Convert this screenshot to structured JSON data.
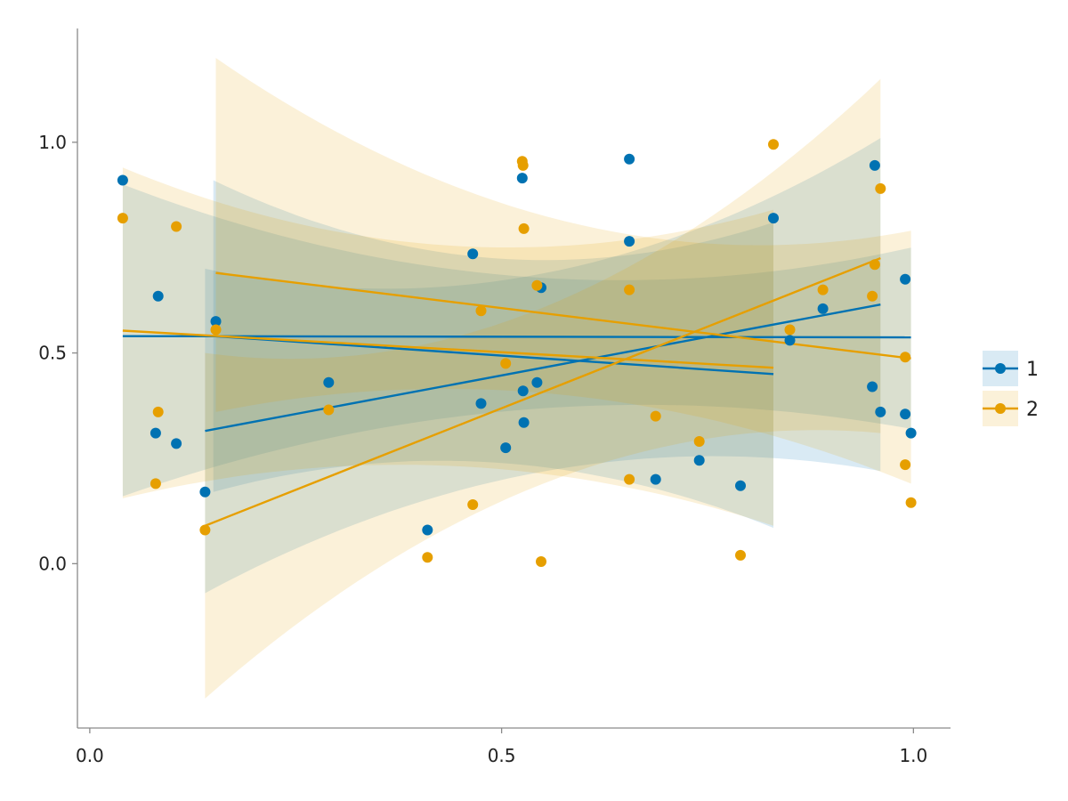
{
  "chart_data": {
    "type": "scatter",
    "title": "",
    "xlabel": "",
    "ylabel": "",
    "xlim": [
      -0.015,
      1.045
    ],
    "ylim": [
      -0.39,
      1.27
    ],
    "x_ticks": [
      0.0,
      0.5,
      1.0
    ],
    "x_tick_labels": [
      "0.0",
      "0.5",
      "1.0"
    ],
    "y_ticks": [
      0.0,
      0.5,
      1.0
    ],
    "y_tick_labels": [
      "0.0",
      "0.5",
      "1.0"
    ],
    "grid": false,
    "legend_position": "right",
    "series": [
      {
        "name": "1",
        "color": "#0072B2",
        "points": [
          [
            0.04,
            0.91
          ],
          [
            0.08,
            0.31
          ],
          [
            0.083,
            0.635
          ],
          [
            0.105,
            0.285
          ],
          [
            0.14,
            0.17
          ],
          [
            0.153,
            0.575
          ],
          [
            0.29,
            0.43
          ],
          [
            0.41,
            0.08
          ],
          [
            0.465,
            0.735
          ],
          [
            0.475,
            0.38
          ],
          [
            0.505,
            0.275
          ],
          [
            0.525,
            0.915
          ],
          [
            0.526,
            0.41
          ],
          [
            0.527,
            0.335
          ],
          [
            0.543,
            0.43
          ],
          [
            0.548,
            0.655
          ],
          [
            0.655,
            0.96
          ],
          [
            0.655,
            0.765
          ],
          [
            0.687,
            0.2
          ],
          [
            0.74,
            0.245
          ],
          [
            0.79,
            0.185
          ],
          [
            0.83,
            0.82
          ],
          [
            0.85,
            0.53
          ],
          [
            0.89,
            0.605
          ],
          [
            0.95,
            0.42
          ],
          [
            0.953,
            0.945
          ],
          [
            0.96,
            0.36
          ],
          [
            0.99,
            0.675
          ],
          [
            0.99,
            0.355
          ],
          [
            0.997,
            0.31
          ]
        ],
        "regressions": [
          {
            "x": [
              0.04,
              0.997
            ],
            "y": [
              0.54,
              0.537
            ],
            "band_lower": [
              0.16,
              0.32
            ],
            "band_mid": [
              0.52,
              0.5
            ],
            "band_upper": [
              0.9,
              0.75
            ]
          },
          {
            "x": [
              0.15,
              0.83
            ],
            "y": [
              0.54,
              0.45
            ],
            "band_lower": [
              0.17,
              0.085
            ],
            "band_mid": [
              0.24,
              0.27
            ],
            "band_upper": [
              0.91,
              0.81
            ]
          },
          {
            "x": [
              0.14,
              0.96
            ],
            "y": [
              0.315,
              0.615
            ],
            "band_lower": [
              -0.07,
              0.22
            ],
            "band_mid": [
              0.27,
              0.27
            ],
            "band_upper": [
              0.7,
              1.01
            ]
          }
        ]
      },
      {
        "name": "2",
        "color": "#E69F00",
        "points": [
          [
            0.04,
            0.82
          ],
          [
            0.08,
            0.19
          ],
          [
            0.083,
            0.36
          ],
          [
            0.105,
            0.8
          ],
          [
            0.14,
            0.08
          ],
          [
            0.153,
            0.555
          ],
          [
            0.29,
            0.365
          ],
          [
            0.41,
            0.015
          ],
          [
            0.465,
            0.14
          ],
          [
            0.475,
            0.6
          ],
          [
            0.505,
            0.475
          ],
          [
            0.525,
            0.955
          ],
          [
            0.526,
            0.945
          ],
          [
            0.527,
            0.795
          ],
          [
            0.543,
            0.66
          ],
          [
            0.548,
            0.005
          ],
          [
            0.655,
            0.65
          ],
          [
            0.655,
            0.2
          ],
          [
            0.687,
            0.35
          ],
          [
            0.74,
            0.29
          ],
          [
            0.79,
            0.02
          ],
          [
            0.83,
            0.995
          ],
          [
            0.85,
            0.555
          ],
          [
            0.89,
            0.65
          ],
          [
            0.95,
            0.635
          ],
          [
            0.953,
            0.71
          ],
          [
            0.96,
            0.89
          ],
          [
            0.99,
            0.49
          ],
          [
            0.99,
            0.235
          ],
          [
            0.997,
            0.145
          ]
        ],
        "regressions": [
          {
            "x": [
              0.04,
              0.83
            ],
            "y": [
              0.553,
              0.465
            ],
            "band_lower": [
              0.155,
              0.09
            ],
            "band_mid": [
              0.3,
              0.3
            ],
            "band_upper": [
              0.94,
              0.84
            ]
          },
          {
            "x": [
              0.153,
              0.997
            ],
            "y": [
              0.69,
              0.487
            ],
            "band_lower": [
              0.36,
              0.19
            ],
            "band_mid": [
              0.37,
              0.4
            ],
            "band_upper": [
              1.2,
              0.79
            ]
          },
          {
            "x": [
              0.14,
              0.96
            ],
            "y": [
              0.09,
              0.725
            ],
            "band_lower": [
              -0.32,
              0.31
            ],
            "band_mid": [
              0.32,
              0.32
            ],
            "band_upper": [
              0.5,
              1.15
            ]
          }
        ]
      }
    ]
  }
}
